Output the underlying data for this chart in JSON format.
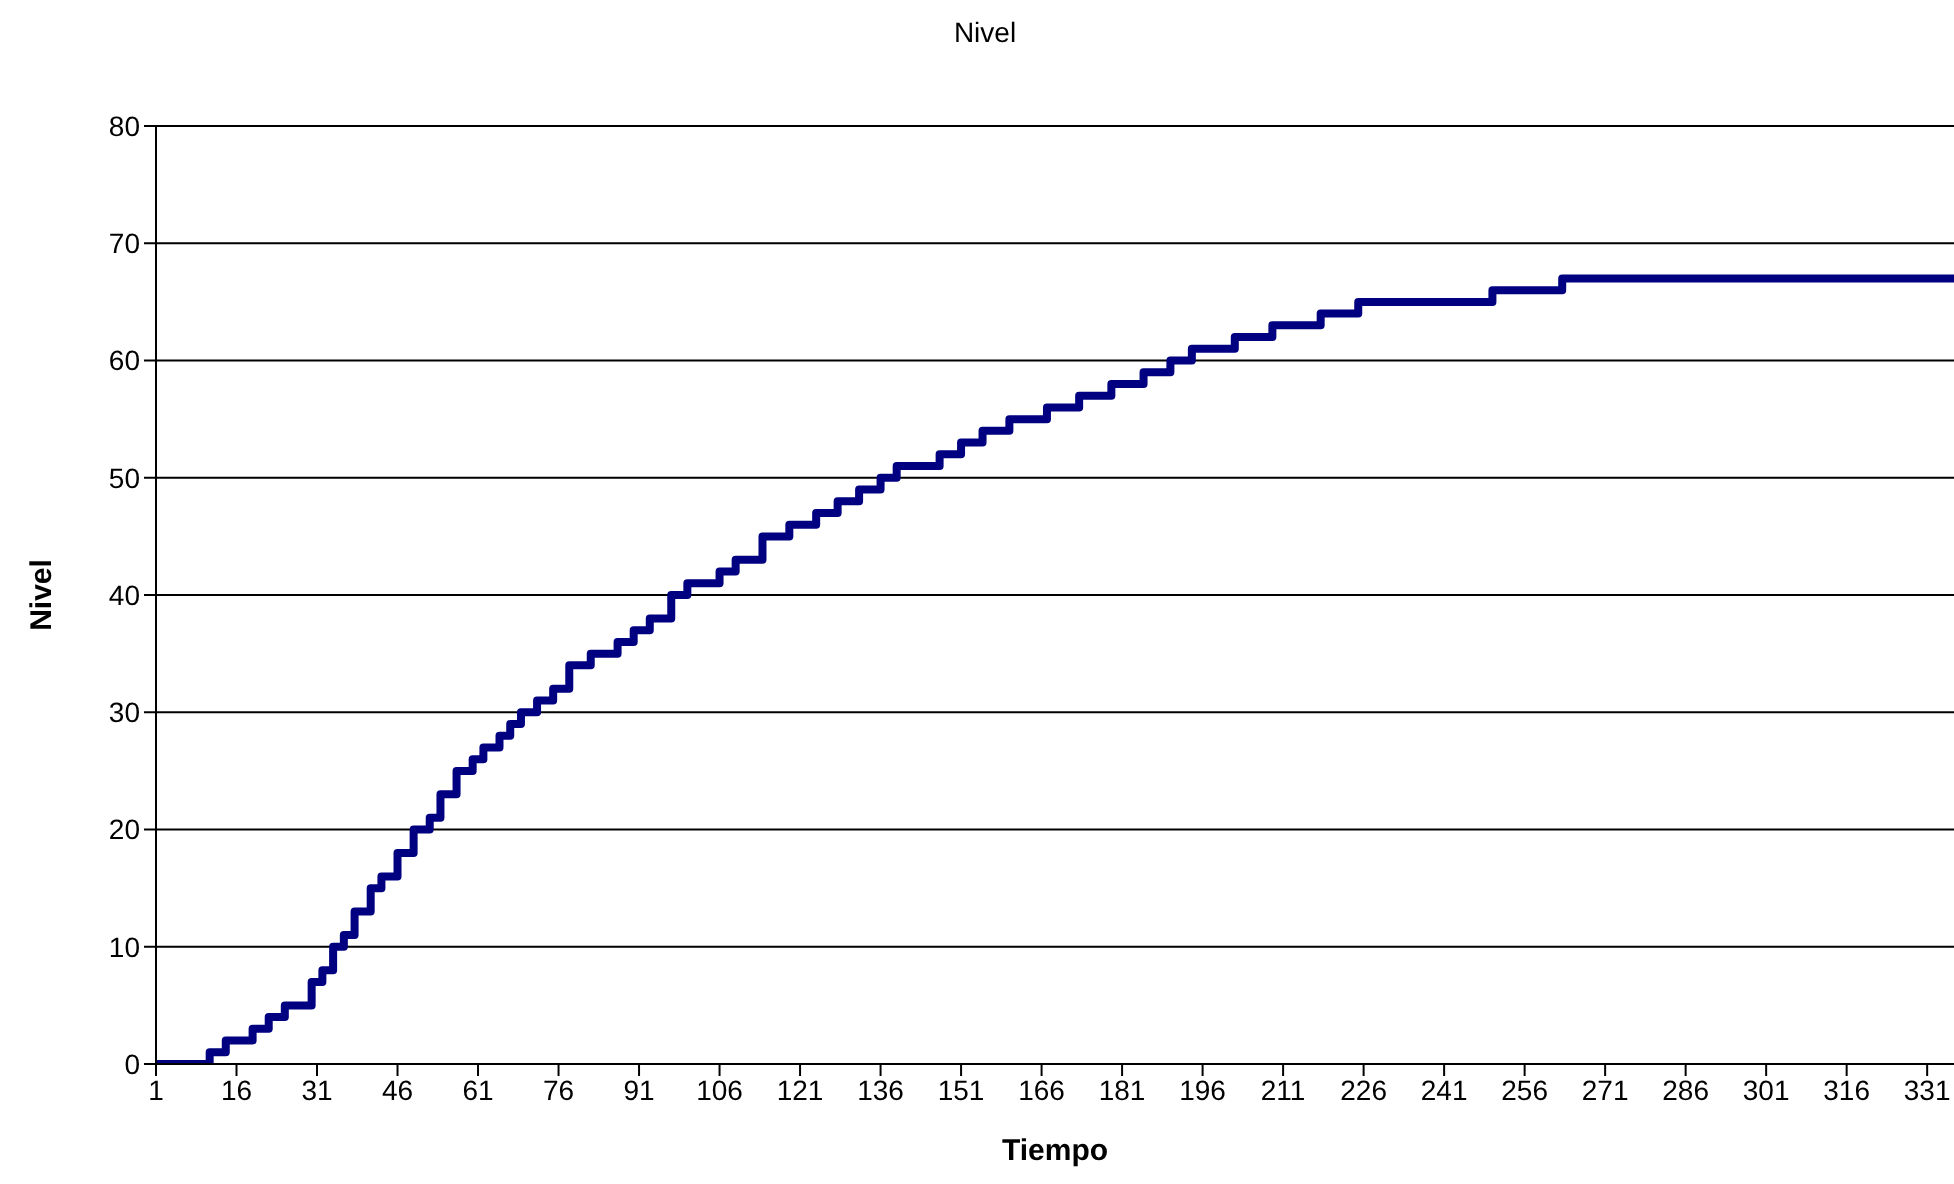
{
  "chart_data": {
    "type": "step",
    "title": "Nivel",
    "xlabel": "Tiempo",
    "ylabel": "Nivel",
    "x": [
      1,
      11,
      14,
      19,
      22,
      25,
      30,
      32,
      34,
      36,
      38,
      41,
      43,
      46,
      49,
      52,
      54,
      57,
      60,
      62,
      65,
      67,
      69,
      72,
      75,
      78,
      82,
      87,
      90,
      93,
      97,
      100,
      106,
      109,
      114,
      119,
      124,
      128,
      132,
      136,
      139,
      147,
      151,
      155,
      160,
      167,
      173,
      179,
      185,
      190,
      194,
      202,
      209,
      218,
      225,
      250,
      263,
      336
    ],
    "series": [
      {
        "color": "#000080",
        "values": [
          0,
          1,
          2,
          3,
          4,
          5,
          7,
          8,
          10,
          11,
          13,
          15,
          16,
          18,
          20,
          21,
          23,
          25,
          26,
          27,
          28,
          29,
          30,
          31,
          32,
          34,
          35,
          36,
          37,
          38,
          40,
          41,
          42,
          43,
          45,
          46,
          47,
          48,
          49,
          50,
          51,
          52,
          53,
          54,
          55,
          56,
          57,
          58,
          59,
          60,
          61,
          62,
          63,
          64,
          65,
          66,
          67,
          67
        ]
      }
    ],
    "xlim": [
      1,
      336
    ],
    "xticks": [
      1,
      16,
      31,
      46,
      61,
      76,
      91,
      106,
      121,
      136,
      151,
      166,
      181,
      196,
      211,
      226,
      241,
      256,
      271,
      286,
      301,
      316,
      331
    ],
    "ylim": [
      0,
      80
    ],
    "yticks": [
      0,
      10,
      20,
      30,
      40,
      50,
      60,
      70,
      80
    ],
    "grid": "y",
    "marker": "none",
    "line_style": "solid"
  }
}
